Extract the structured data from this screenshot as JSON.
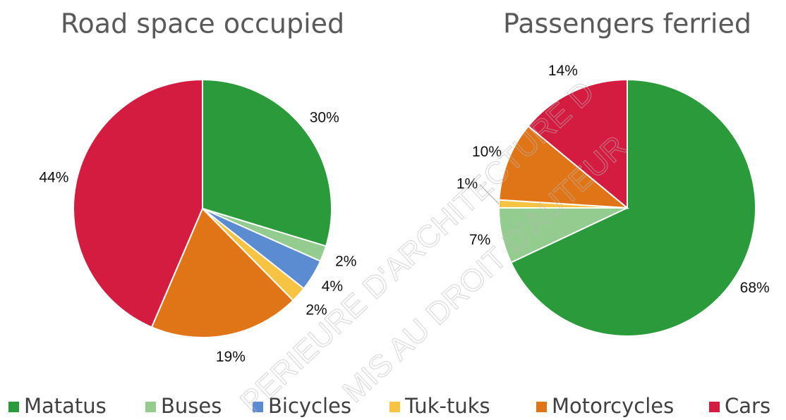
{
  "chart_data": [
    {
      "type": "pie",
      "title": "Road space occupied",
      "categories": [
        "Matatus",
        "Buses",
        "Bicycles",
        "Tuk-tuks",
        "Motorcycles",
        "Cars"
      ],
      "values": [
        30,
        2,
        4,
        2,
        19,
        44
      ],
      "value_labels": [
        "30%",
        "2%",
        "4%",
        "2%",
        "19%",
        "44%"
      ],
      "colors": [
        "#2a9a3a",
        "#93cc8e",
        "#5b8bd0",
        "#f6c342",
        "#e07518",
        "#d31c3f"
      ]
    },
    {
      "type": "pie",
      "title": "Passengers ferried",
      "categories": [
        "Matatus",
        "Buses",
        "Tuk-tuks",
        "Motorcycles",
        "Cars"
      ],
      "values": [
        68,
        7,
        1,
        10,
        14
      ],
      "value_labels": [
        "68%",
        "7%",
        "1%",
        "10%",
        "14%"
      ],
      "colors": [
        "#2a9a3a",
        "#93cc8e",
        "#f6c342",
        "#e07518",
        "#d31c3f"
      ]
    }
  ],
  "watermark": [
    "PERIEURE D'ARCHITECTURE D",
    "MIS AU DROIT D'AUTEUR"
  ]
}
